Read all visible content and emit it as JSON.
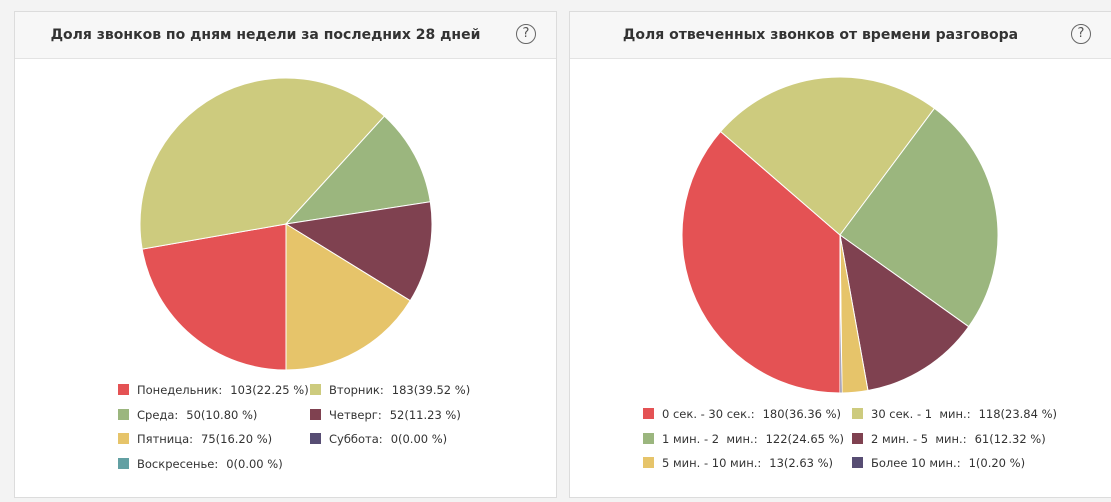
{
  "chart_data": [
    {
      "type": "pie",
      "title": "Доля звонков по дням недели за последних 28 дней",
      "slices": [
        {
          "label": "Понедельник:",
          "count_text": "103(22.25 %)",
          "value": 22.25,
          "color": "#e45254"
        },
        {
          "label": "Вторник:",
          "count_text": "183(39.52 %)",
          "value": 39.52,
          "color": "#cdcb7e"
        },
        {
          "label": "Среда:",
          "count_text": "50(10.80 %)",
          "value": 10.8,
          "color": "#9bb67e"
        },
        {
          "label": "Четверг:",
          "count_text": "52(11.23 %)",
          "value": 11.23,
          "color": "#7f4150"
        },
        {
          "label": "Пятница:",
          "count_text": "75(16.20 %)",
          "value": 16.2,
          "color": "#e6c46a"
        },
        {
          "label": "Суббота:",
          "count_text": "0(0.00 %)",
          "value": 0.0,
          "color": "#574d73"
        },
        {
          "label": "Воскресенье:",
          "count_text": "0(0.00 %)",
          "value": 0.0,
          "color": "#62a0a3"
        }
      ],
      "legend_position": "bottom"
    },
    {
      "type": "pie",
      "title": "Доля отвеченных звонков от времени разговора",
      "slices": [
        {
          "label": "0 сек. - 30 сек.:",
          "count_text": "180(36.36 %)",
          "value": 36.36,
          "color": "#e45254"
        },
        {
          "label": "30 сек. - 1  мин.:",
          "count_text": "118(23.84 %)",
          "value": 23.84,
          "color": "#cdcb7e"
        },
        {
          "label": "1 мин. - 2  мин.:",
          "count_text": "122(24.65 %)",
          "value": 24.65,
          "color": "#9bb67e"
        },
        {
          "label": "2 мин. - 5  мин.:",
          "count_text": "61(12.32 %)",
          "value": 12.32,
          "color": "#7f4150"
        },
        {
          "label": "5 мин. - 10 мин.:",
          "count_text": "13(2.63 %)",
          "value": 2.63,
          "color": "#e6c46a"
        },
        {
          "label": "Более 10 мин.:",
          "count_text": "1(0.20 %)",
          "value": 0.2,
          "color": "#574d73"
        }
      ],
      "legend_position": "bottom"
    }
  ],
  "help_glyph": "?"
}
